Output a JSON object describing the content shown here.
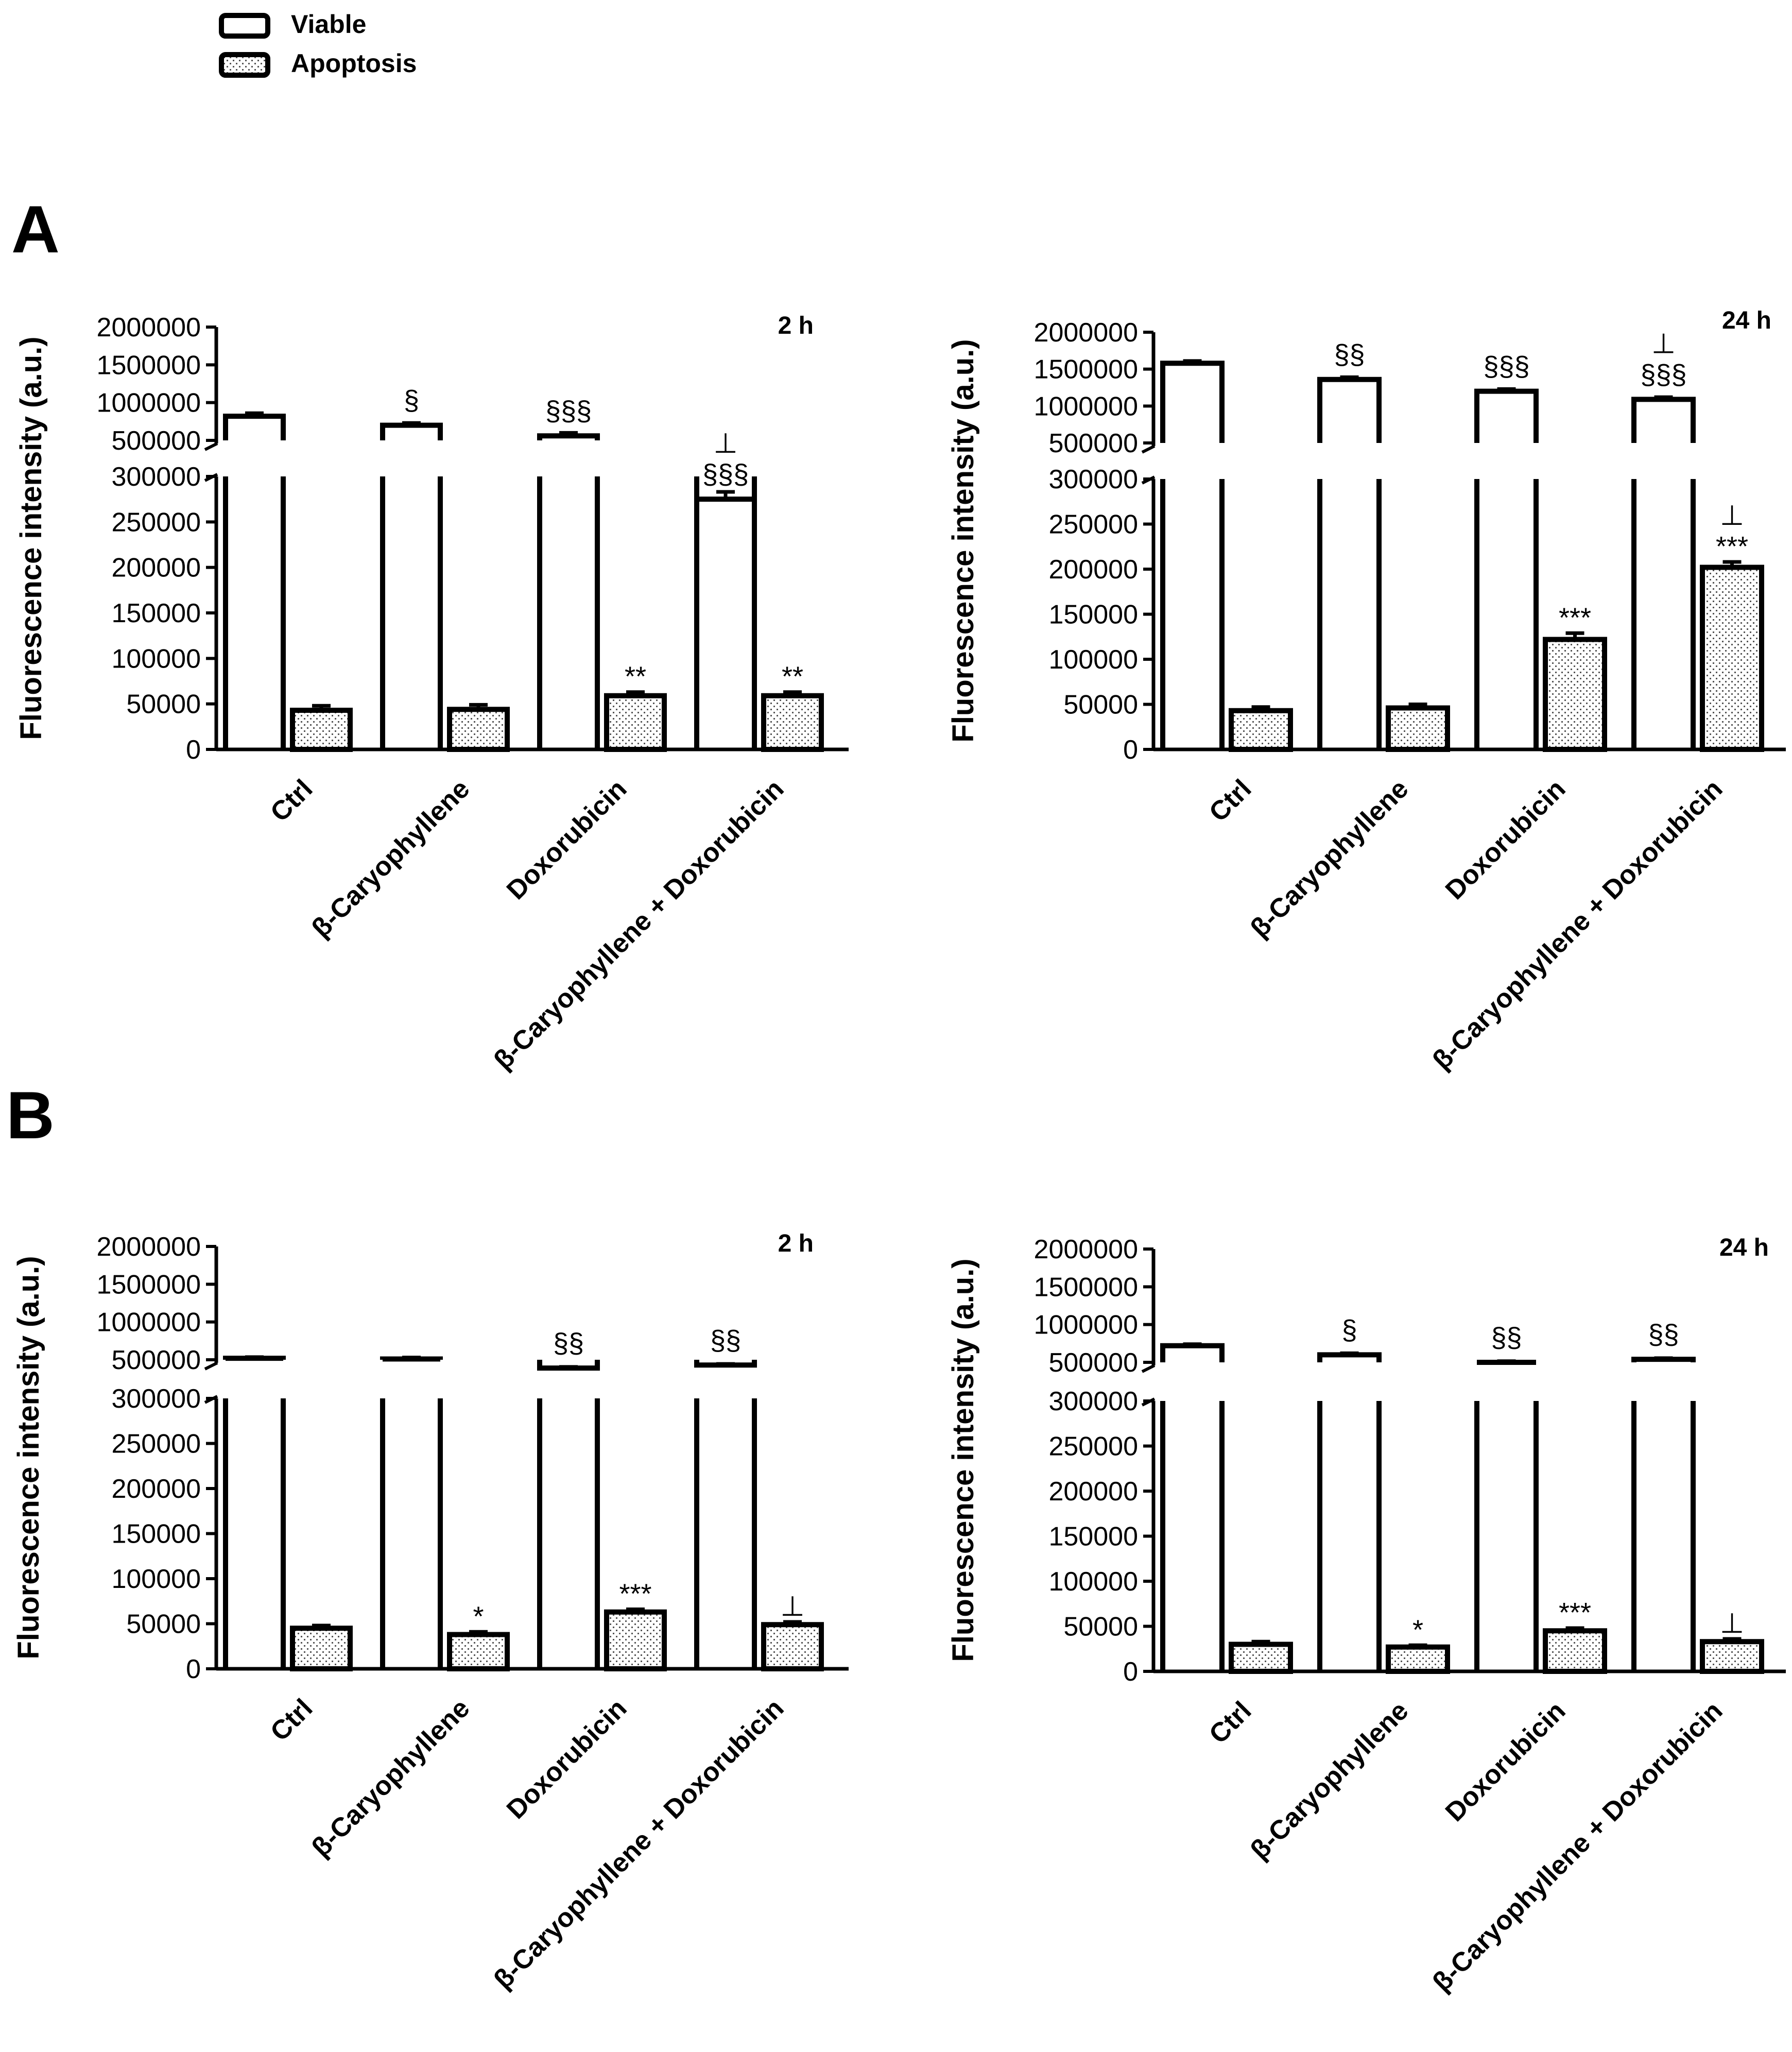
{
  "legend": {
    "items": [
      {
        "label": "Viable",
        "pattern": "open"
      },
      {
        "label": "Apoptosis",
        "pattern": "dotted"
      }
    ]
  },
  "panels": [
    {
      "label": "A"
    },
    {
      "label": "B"
    }
  ],
  "colors": {
    "ink": "#000000",
    "fill_open": "#ffffff",
    "dot": "#555555"
  },
  "chart_data": [
    {
      "type": "bar",
      "panel": "A",
      "title": "2 h",
      "ylabel": "Fluorescence intensity (a.u.)",
      "xlabel": "",
      "categories": [
        "Ctrl",
        "β-Caryophyllene",
        "Doxorubicin",
        "β-Caryophyllene + Doxorubicin"
      ],
      "axis_break": {
        "lower": [
          0,
          300000
        ],
        "upper": [
          500000,
          2000000
        ]
      },
      "lower_ticks": [
        "0",
        "50000",
        "100000",
        "150000",
        "200000",
        "250000",
        "300000"
      ],
      "upper_ticks": [
        "500000",
        "1000000",
        "1500000",
        "2000000"
      ],
      "series": [
        {
          "name": "Viable",
          "values": [
            820000,
            700000,
            560000,
            275000
          ],
          "errors": [
            40000,
            30000,
            40000,
            8000
          ],
          "annotations": [
            "",
            "§",
            "§§§",
            "⊥\n§§§"
          ]
        },
        {
          "name": "Apoptosis",
          "values": [
            43000,
            44000,
            59000,
            59000
          ],
          "errors": [
            5000,
            5000,
            4000,
            4000
          ],
          "annotations": [
            "",
            "",
            "**",
            "**"
          ]
        }
      ]
    },
    {
      "type": "bar",
      "panel": "A",
      "title": "24 h",
      "ylabel": "Fluorescence intensity (a.u.)",
      "xlabel": "",
      "categories": [
        "Ctrl",
        "β-Caryophyllene",
        "Doxorubicin",
        "β-Caryophyllene + Doxorubicin"
      ],
      "axis_break": {
        "lower": [
          0,
          300000
        ],
        "upper": [
          500000,
          2000000
        ]
      },
      "lower_ticks": [
        "0",
        "50000",
        "100000",
        "150000",
        "200000",
        "250000",
        "300000"
      ],
      "upper_ticks": [
        "500000",
        "1000000",
        "1500000",
        "2000000"
      ],
      "series": [
        {
          "name": "Viable",
          "values": [
            1580000,
            1360000,
            1200000,
            1090000
          ],
          "errors": [
            30000,
            30000,
            30000,
            30000
          ],
          "annotations": [
            "",
            "§§",
            "§§§",
            "⊥\n§§§"
          ]
        },
        {
          "name": "Apoptosis",
          "values": [
            43000,
            46000,
            122000,
            202000
          ],
          "errors": [
            4000,
            4000,
            7000,
            6000
          ],
          "annotations": [
            "",
            "",
            "***",
            "⊥\n***"
          ]
        }
      ]
    },
    {
      "type": "bar",
      "panel": "B",
      "title": "2 h",
      "ylabel": "Fluorescence intensity (a.u.)",
      "xlabel": "",
      "categories": [
        "Ctrl",
        "β-Caryophyllene",
        "Doxorubicin",
        "β-Caryophyllene + Doxorubicin"
      ],
      "axis_break": {
        "lower": [
          0,
          300000
        ],
        "upper": [
          500000,
          2000000
        ]
      },
      "lower_ticks": [
        "0",
        "50000",
        "100000",
        "150000",
        "200000",
        "250000",
        "300000"
      ],
      "upper_ticks": [
        "500000",
        "1000000",
        "1500000",
        "2000000"
      ],
      "series": [
        {
          "name": "Viable",
          "values": [
            520000,
            510000,
            390000,
            430000
          ],
          "errors": [
            15000,
            20000,
            15000,
            15000
          ],
          "annotations": [
            "",
            "",
            "§§",
            "§§"
          ]
        },
        {
          "name": "Apoptosis",
          "values": [
            45000,
            38000,
            63000,
            49000
          ],
          "errors": [
            3000,
            3000,
            3000,
            3000
          ],
          "annotations": [
            "",
            "*",
            "***",
            "⊥"
          ]
        }
      ]
    },
    {
      "type": "bar",
      "panel": "B",
      "title": "24 h",
      "ylabel": "Fluorescence intensity (a.u.)",
      "xlabel": "",
      "categories": [
        "Ctrl",
        "β-Caryophyllene",
        "Doxorubicin",
        "β-Caryophyllene + Doxorubicin"
      ],
      "axis_break": {
        "lower": [
          0,
          300000
        ],
        "upper": [
          500000,
          2000000
        ]
      },
      "lower_ticks": [
        "0",
        "50000",
        "100000",
        "150000",
        "200000",
        "250000",
        "300000"
      ],
      "upper_ticks": [
        "500000",
        "1000000",
        "1500000",
        "2000000"
      ],
      "series": [
        {
          "name": "Viable",
          "values": [
            720000,
            600000,
            500000,
            540000
          ],
          "errors": [
            20000,
            20000,
            15000,
            15000
          ],
          "annotations": [
            "",
            "§",
            "§§",
            "§§"
          ]
        },
        {
          "name": "Apoptosis",
          "values": [
            30000,
            27000,
            45000,
            33000
          ],
          "errors": [
            3000,
            2000,
            3000,
            3000
          ],
          "annotations": [
            "",
            "*",
            "***",
            "⊥"
          ]
        }
      ]
    }
  ]
}
